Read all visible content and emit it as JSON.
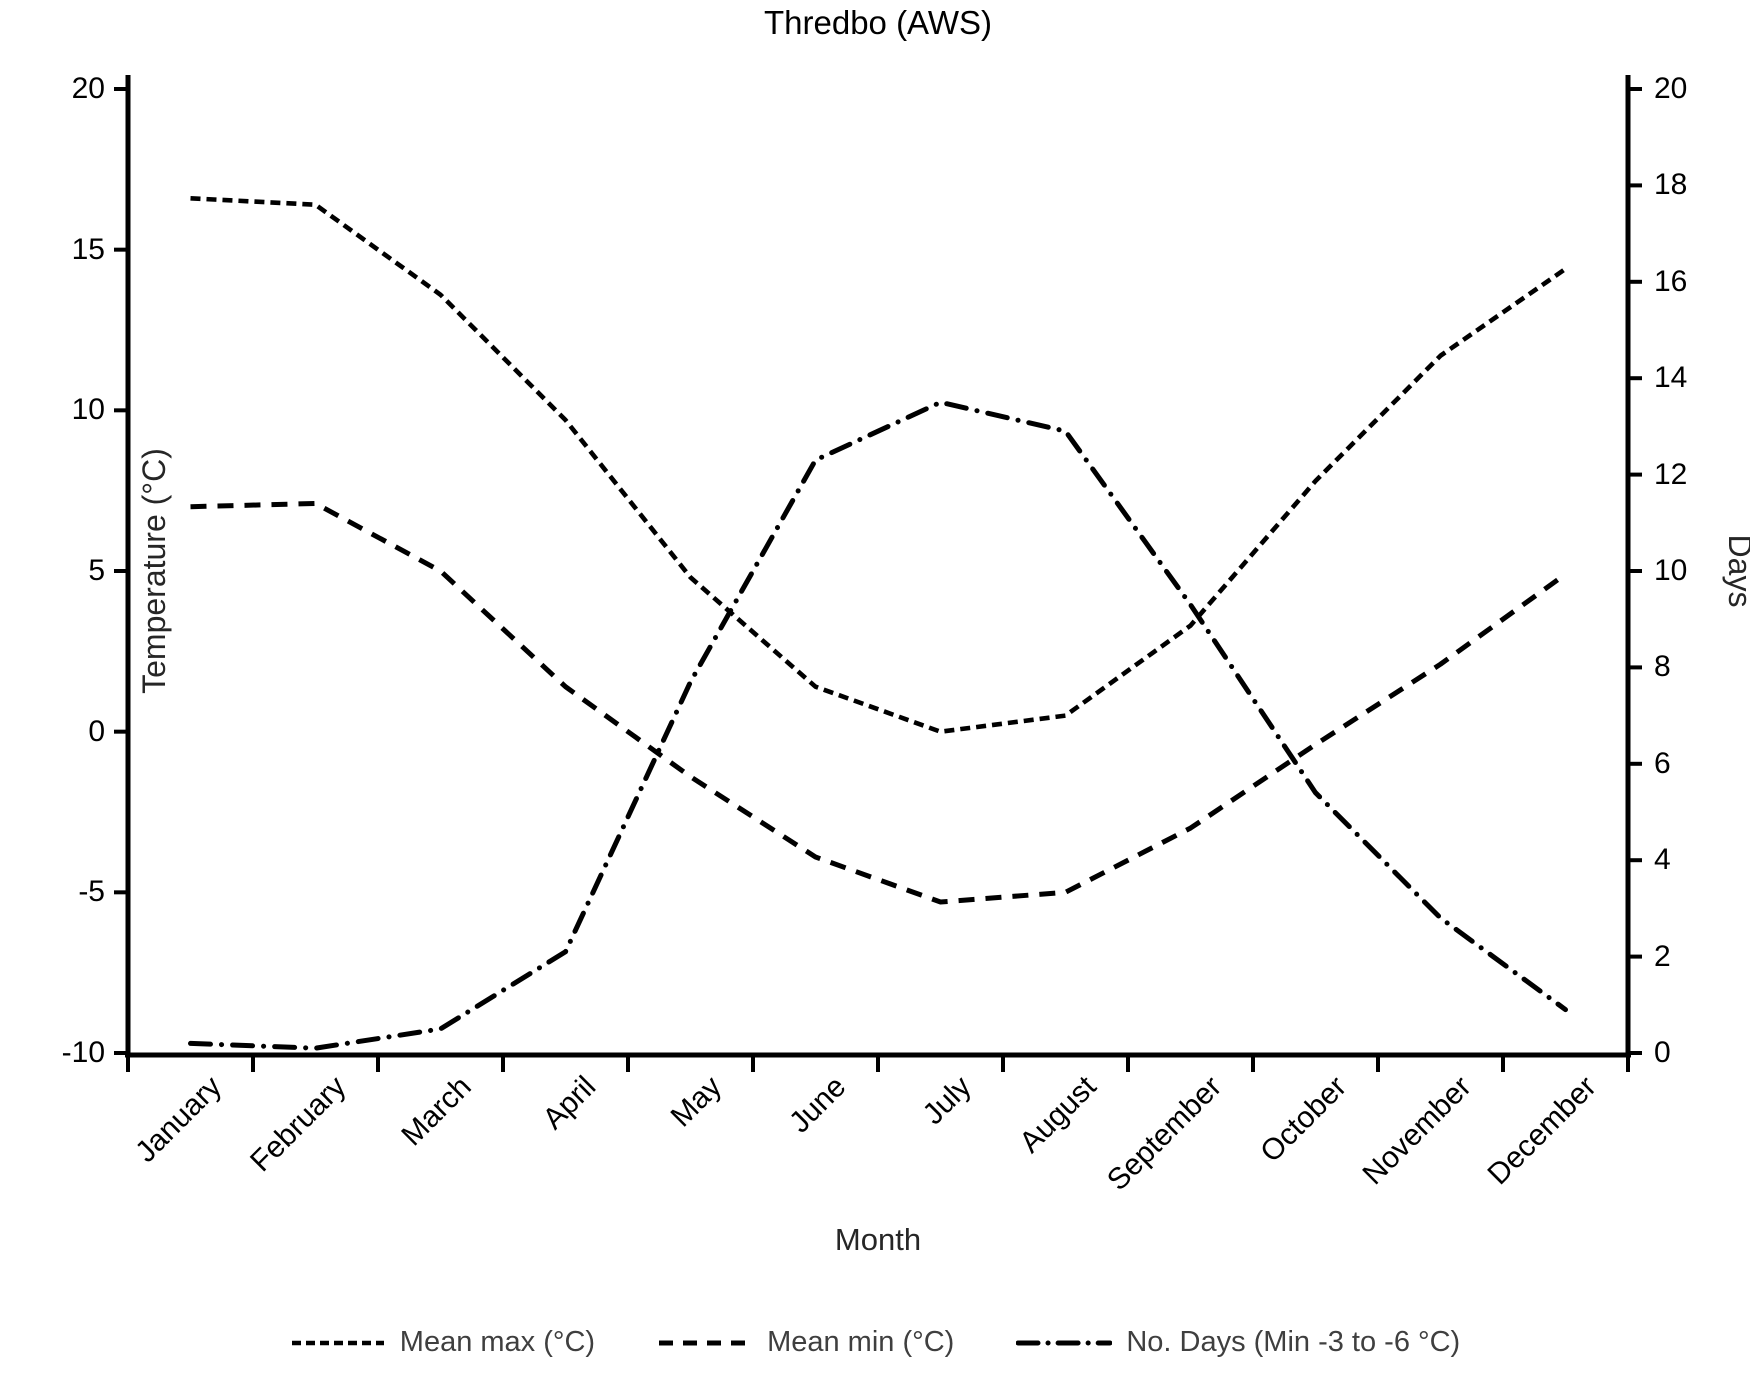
{
  "title": "Thredbo (AWS)",
  "axes": {
    "left": {
      "label": "Temperature (°C)",
      "ticks": [
        -10,
        -5,
        0,
        5,
        10,
        15,
        20
      ],
      "range": [
        -10,
        20
      ]
    },
    "right": {
      "label": "Days",
      "ticks": [
        0,
        2,
        4,
        6,
        8,
        10,
        12,
        14,
        16,
        18,
        20
      ],
      "range": [
        0,
        20
      ]
    },
    "x": {
      "label": "Month"
    }
  },
  "chart_data": {
    "type": "line",
    "title": "Thredbo (AWS)",
    "xlabel": "Month",
    "ylabel_left": "Temperature (°C)",
    "ylabel_right": "Days",
    "ylim_left": [
      -10,
      20
    ],
    "ylim_right": [
      0,
      20
    ],
    "grid": false,
    "legend_position": "bottom",
    "line_color": "#000000",
    "categories": [
      "January",
      "February",
      "March",
      "April",
      "May",
      "June",
      "July",
      "August",
      "September",
      "October",
      "November",
      "December"
    ],
    "series": [
      {
        "name": "Mean max (°C)",
        "axis": "left",
        "style": "dotted",
        "values": [
          16.6,
          16.4,
          13.6,
          9.7,
          4.8,
          1.4,
          0.0,
          0.5,
          3.3,
          7.8,
          11.7,
          14.4
        ]
      },
      {
        "name": "Mean min (°C)",
        "axis": "left",
        "style": "dashed",
        "values": [
          7.0,
          7.1,
          5.0,
          1.4,
          -1.4,
          -3.9,
          -5.3,
          -5.0,
          -3.0,
          -0.4,
          2.1,
          4.9
        ]
      },
      {
        "name": "No. Days (Min -3 to -6 °C)",
        "axis": "right",
        "style": "dashdot",
        "values": [
          0.2,
          0.1,
          0.5,
          2.1,
          7.7,
          12.3,
          13.5,
          12.9,
          9.3,
          5.4,
          2.8,
          0.9
        ]
      }
    ]
  },
  "colors": {
    "line": "#000000",
    "text": "#000000",
    "text_muted": "#3f3f3f"
  }
}
